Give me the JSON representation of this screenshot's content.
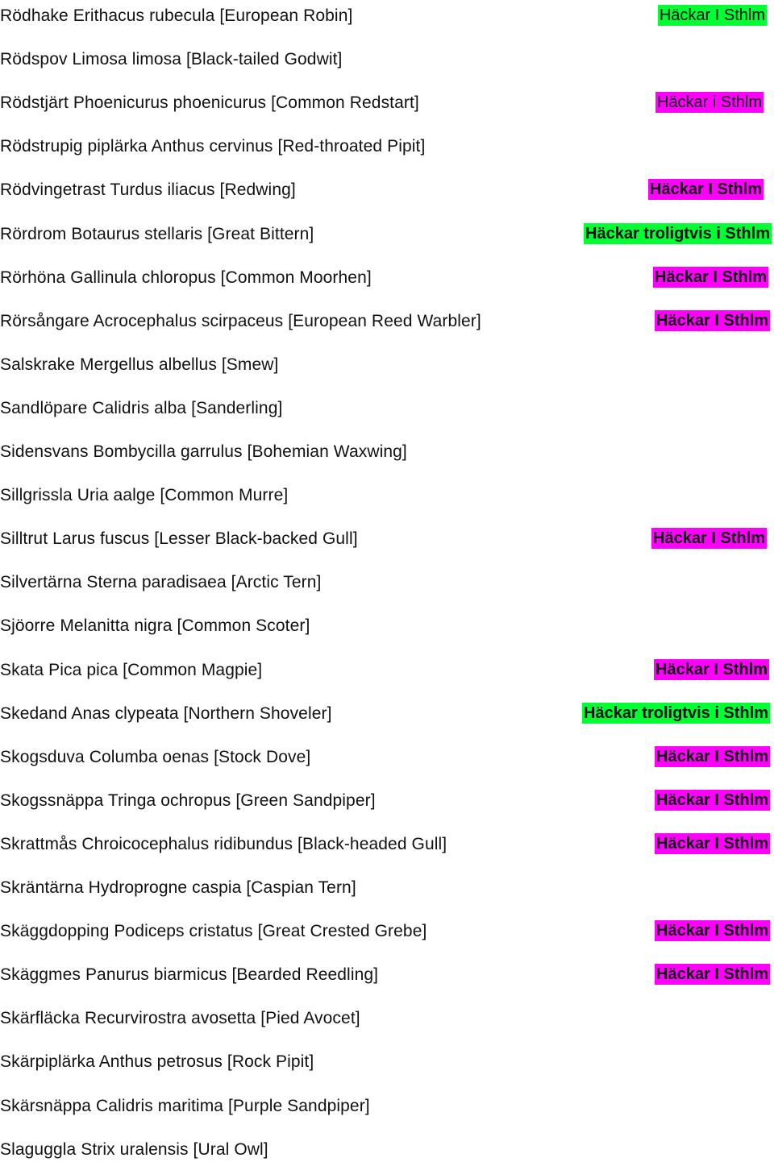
{
  "colors": {
    "green": "#00ff33",
    "magenta": "#ff00ff"
  },
  "rows": [
    {
      "species": "Rödhake Erithacus rubecula [European Robin]",
      "tag": "Häckar I Sthlm",
      "color": "green",
      "bold": false
    },
    {
      "species": "Rödspov Limosa limosa [Black-tailed Godwit]",
      "tag": "",
      "color": "",
      "bold": false
    },
    {
      "species": "Rödstjärt Phoenicurus phoenicurus [Common Redstart]",
      "tag": "Häckar i Sthlm",
      "color": "magenta",
      "bold": false
    },
    {
      "species": "Rödstrupig piplärka Anthus cervinus [Red-throated Pipit]",
      "tag": "",
      "color": "",
      "bold": false
    },
    {
      "species": "Rödvingetrast Turdus iliacus [Redwing]",
      "tag": "Häckar I Sthlm",
      "color": "magenta",
      "bold": true
    },
    {
      "species": "Rördrom Botaurus stellaris [Great Bittern]",
      "tag": "Häckar troligtvis i Sthlm",
      "color": "green",
      "bold": true
    },
    {
      "species": "Rörhöna Gallinula chloropus [Common Moorhen]",
      "tag": "Häckar I Sthlm",
      "color": "magenta",
      "bold": true
    },
    {
      "species": "Rörsångare Acrocephalus scirpaceus [European Reed Warbler]",
      "tag": "Häckar I Sthlm",
      "color": "magenta",
      "bold": true
    },
    {
      "species": "Salskrake Mergellus albellus [Smew]",
      "tag": "",
      "color": "",
      "bold": false
    },
    {
      "species": "Sandlöpare Calidris alba [Sanderling]",
      "tag": "",
      "color": "",
      "bold": false
    },
    {
      "species": "Sidensvans Bombycilla garrulus [Bohemian Waxwing]",
      "tag": "",
      "color": "",
      "bold": false
    },
    {
      "species": "Sillgrissla Uria aalge [Common Murre]",
      "tag": "",
      "color": "",
      "bold": false
    },
    {
      "species": "Silltrut Larus fuscus [Lesser Black-backed Gull]",
      "tag": "Häckar I Sthlm",
      "color": "magenta",
      "bold": true
    },
    {
      "species": "Silvertärna Sterna paradisaea [Arctic Tern]",
      "tag": "",
      "color": "",
      "bold": false
    },
    {
      "species": "Sjöorre Melanitta nigra [Common Scoter]",
      "tag": "",
      "color": "",
      "bold": false
    },
    {
      "species": "Skata Pica pica [Common Magpie]",
      "tag": "Häckar I Sthlm",
      "color": "magenta",
      "bold": true
    },
    {
      "species": "Skedand Anas clypeata [Northern Shoveler]",
      "tag": "Häckar troligtvis i Sthlm",
      "color": "green",
      "bold": true
    },
    {
      "species": "Skogsduva Columba oenas [Stock Dove]",
      "tag": "Häckar I Sthlm",
      "color": "magenta",
      "bold": true
    },
    {
      "species": "Skogssnäppa Tringa ochropus [Green Sandpiper]",
      "tag": "Häckar I Sthlm",
      "color": "magenta",
      "bold": true
    },
    {
      "species": "Skrattmås Chroicocephalus ridibundus [Black-headed Gull]",
      "tag": "Häckar I Sthlm",
      "color": "magenta",
      "bold": true
    },
    {
      "species": "Skräntärna Hydroprogne caspia [Caspian Tern]",
      "tag": "",
      "color": "",
      "bold": false
    },
    {
      "species": "Skäggdopping Podiceps cristatus [Great Crested Grebe]",
      "tag": "Häckar I Sthlm",
      "color": "magenta",
      "bold": true
    },
    {
      "species": "Skäggmes Panurus biarmicus [Bearded Reedling]",
      "tag": "Häckar I Sthlm",
      "color": "magenta",
      "bold": true
    },
    {
      "species": "Skärfläcka Recurvirostra avosetta [Pied Avocet]",
      "tag": "",
      "color": "",
      "bold": false
    },
    {
      "species": "Skärpiplärka Anthus petrosus [Rock Pipit]",
      "tag": "",
      "color": "",
      "bold": false
    },
    {
      "species": "Skärsnäppa Calidris maritima [Purple Sandpiper]",
      "tag": "",
      "color": "",
      "bold": false
    },
    {
      "species": "Slaguggla Strix uralensis [Ural Owl]",
      "tag": "",
      "color": "",
      "bold": false
    }
  ]
}
